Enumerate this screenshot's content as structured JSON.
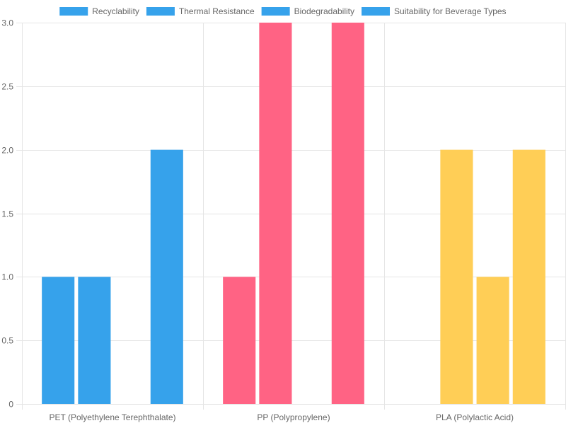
{
  "chart_data": {
    "type": "bar",
    "categories": [
      "PET (Polyethylene Terephthalate)",
      "PP (Polypropylene)",
      "PLA (Polylactic Acid)"
    ],
    "series": [
      {
        "name": "Recyclability",
        "values": [
          1,
          1,
          0
        ]
      },
      {
        "name": "Thermal Resistance",
        "values": [
          1,
          3,
          2
        ]
      },
      {
        "name": "Biodegradability",
        "values": [
          0,
          0,
          1
        ]
      },
      {
        "name": "Suitability for Beverage Types",
        "values": [
          2,
          3,
          2
        ]
      }
    ],
    "bar_colors_by_category": [
      "#36a2eb",
      "#ff6384",
      "#ffce56"
    ],
    "legend_swatch_color": "#36a2eb",
    "legend_position": "top",
    "ylim": [
      0,
      3
    ],
    "yticks": [
      0,
      0.5,
      1,
      1.5,
      2,
      2.5,
      3
    ],
    "ytick_labels": [
      "0",
      "0.5",
      "1.0",
      "1.5",
      "2.0",
      "2.5",
      "3.0"
    ],
    "grid": true,
    "grid_color": "#e5e5e5",
    "axis_text_color": "#666666",
    "title": "",
    "xlabel": "",
    "ylabel": ""
  }
}
